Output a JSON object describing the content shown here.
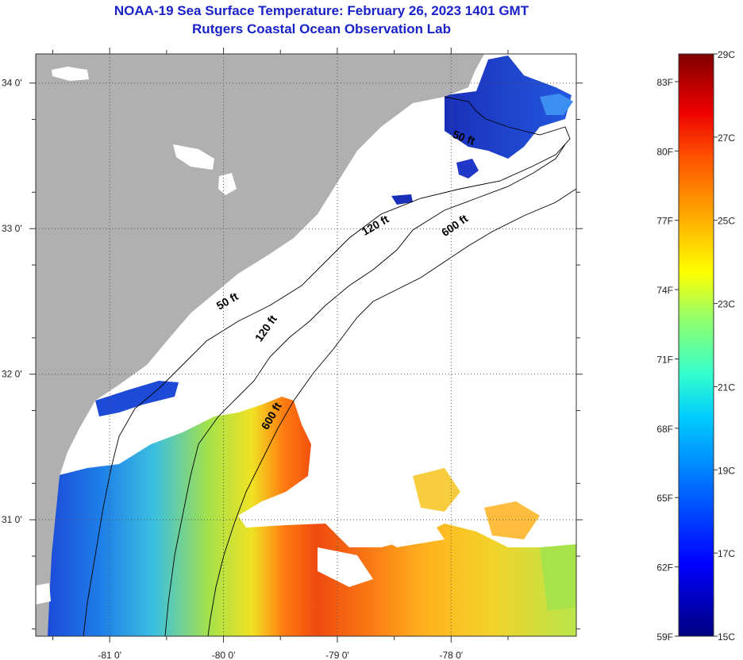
{
  "title": {
    "line1": "NOAA-19 Sea Surface Temperature:  February 26, 2023 1401 GMT",
    "line2": "Rutgers Coastal Ocean Observation Lab"
  },
  "map": {
    "lon_range": [
      -81.65,
      -76.9
    ],
    "lat_range": [
      30.2,
      34.2
    ],
    "lat_ticks": [
      {
        "value": 34,
        "label": "34 0'"
      },
      {
        "value": 33,
        "label": "33 0'"
      },
      {
        "value": 32,
        "label": "32 0'"
      },
      {
        "value": 31,
        "label": "31 0'"
      }
    ],
    "lon_ticks": [
      {
        "value": -81,
        "label": "-81 0'"
      },
      {
        "value": -80,
        "label": "-80 0'"
      },
      {
        "value": -79,
        "label": "-79 0'"
      },
      {
        "value": -78,
        "label": "-78 0'"
      }
    ],
    "depth_labels": [
      {
        "text": "50 ft",
        "lon": -79.95,
        "lat": 32.48,
        "angle": -30
      },
      {
        "text": "120 ft",
        "lon": -79.6,
        "lat": 32.3,
        "angle": -55
      },
      {
        "text": "600 ft",
        "lon": -79.55,
        "lat": 31.7,
        "angle": -60
      },
      {
        "text": "50 ft",
        "lon": -77.9,
        "lat": 33.6,
        "angle": 20
      },
      {
        "text": "120 ft",
        "lon": -78.65,
        "lat": 33.0,
        "angle": -30
      },
      {
        "text": "600 ft",
        "lon": -77.95,
        "lat": 33.0,
        "angle": -35
      }
    ],
    "colors": {
      "land": "#b0b0b0",
      "cloud": "#ffffff",
      "grid": "#606060"
    }
  },
  "colorbar": {
    "min_c": 15,
    "max_c": 29,
    "celsius_labels": [
      "29C",
      "27C",
      "25C",
      "23C",
      "21C",
      "19C",
      "17C",
      "15C"
    ],
    "fahrenheit_labels": [
      "83F",
      "80F",
      "77F",
      "74F",
      "71F",
      "68F",
      "65F",
      "62F",
      "59F"
    ],
    "fahrenheit_values": [
      83,
      80,
      77,
      74,
      71,
      68,
      65,
      62,
      59
    ]
  }
}
